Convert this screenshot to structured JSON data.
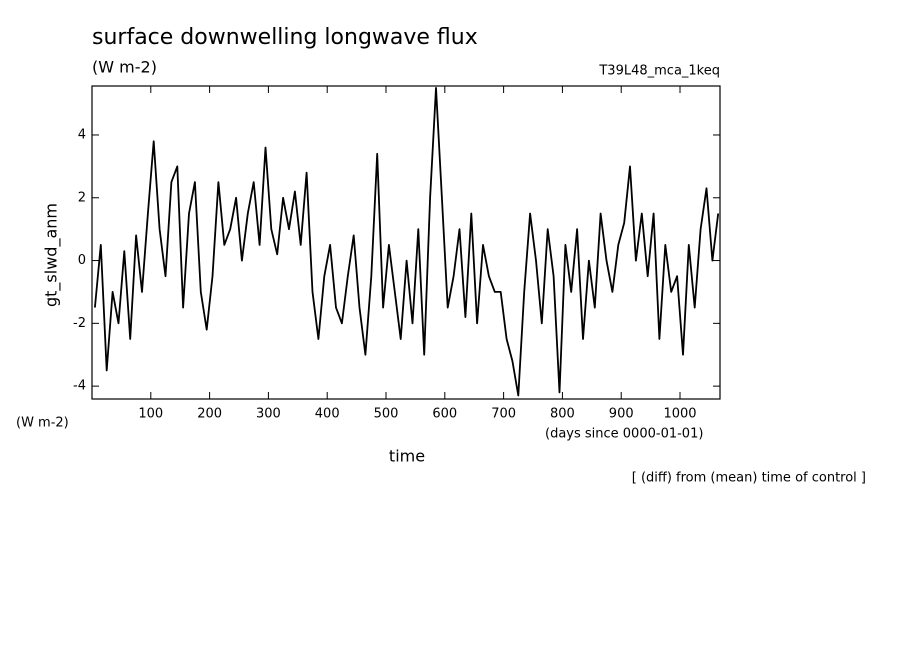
{
  "chart_data": {
    "type": "line",
    "title": "surface downwelling longwave flux",
    "subtitle": "(W m-2)",
    "experiment": "T39L48_mca_1keq",
    "y_label": "gt_slwd_anm",
    "y_units": "(W m-2)",
    "x_label": "time",
    "x_units": "(days since 0000-01-01)",
    "note": "[ (diff) from (mean) time of control ]",
    "color": "#000000",
    "xlim": [
      0,
      1068
    ],
    "ylim": [
      -4.41,
      5.56
    ],
    "xticks": [
      100,
      200,
      300,
      400,
      500,
      600,
      700,
      800,
      900,
      1000
    ],
    "yticks": [
      -4,
      -2,
      0,
      2,
      4
    ],
    "x": [
      5,
      15,
      25,
      35,
      45,
      55,
      65,
      75,
      85,
      95,
      105,
      115,
      125,
      135,
      145,
      155,
      165,
      175,
      185,
      195,
      205,
      215,
      225,
      235,
      245,
      255,
      265,
      275,
      285,
      295,
      305,
      315,
      325,
      335,
      345,
      355,
      365,
      375,
      385,
      395,
      405,
      415,
      425,
      435,
      445,
      455,
      465,
      475,
      485,
      495,
      505,
      515,
      525,
      535,
      545,
      555,
      565,
      575,
      585,
      595,
      605,
      615,
      625,
      635,
      645,
      655,
      665,
      675,
      685,
      695,
      705,
      715,
      725,
      735,
      745,
      755,
      765,
      775,
      785,
      795,
      805,
      815,
      825,
      835,
      845,
      855,
      865,
      875,
      885,
      895,
      905,
      915,
      925,
      935,
      945,
      955,
      965,
      975,
      985,
      995,
      1005,
      1015,
      1025,
      1035,
      1045,
      1055,
      1065
    ],
    "values": [
      -1.5,
      0.5,
      -3.5,
      -1.0,
      -2.0,
      0.3,
      -2.5,
      0.8,
      -1.0,
      1.5,
      3.8,
      1.0,
      -0.5,
      2.5,
      3.0,
      -1.5,
      1.5,
      2.5,
      -1.0,
      -2.2,
      -0.5,
      2.5,
      0.5,
      1.0,
      2.0,
      0.0,
      1.5,
      2.5,
      0.5,
      3.6,
      1.0,
      0.2,
      2.0,
      1.0,
      2.2,
      0.5,
      2.8,
      -1.0,
      -2.5,
      -0.5,
      0.5,
      -1.5,
      -2.0,
      -0.5,
      0.8,
      -1.5,
      -3.0,
      -0.5,
      3.4,
      -1.5,
      0.5,
      -1.0,
      -2.5,
      0.0,
      -2.0,
      1.0,
      -3.0,
      2.0,
      5.5,
      2.0,
      -1.5,
      -0.5,
      1.0,
      -1.8,
      1.5,
      -2.0,
      0.5,
      -0.5,
      -1.0,
      -1.0,
      -2.5,
      -3.2,
      -4.3,
      -1.0,
      1.5,
      0.0,
      -2.0,
      1.0,
      -0.5,
      -4.2,
      0.5,
      -1.0,
      1.0,
      -2.5,
      0.0,
      -1.5,
      1.5,
      0.0,
      -1.0,
      0.5,
      1.2,
      3.0,
      0.0,
      1.5,
      -0.5,
      1.5,
      -2.5,
      0.5,
      -1.0,
      -0.5,
      -3.0,
      0.5,
      -1.5,
      1.0,
      2.3,
      0.0,
      1.5
    ]
  }
}
